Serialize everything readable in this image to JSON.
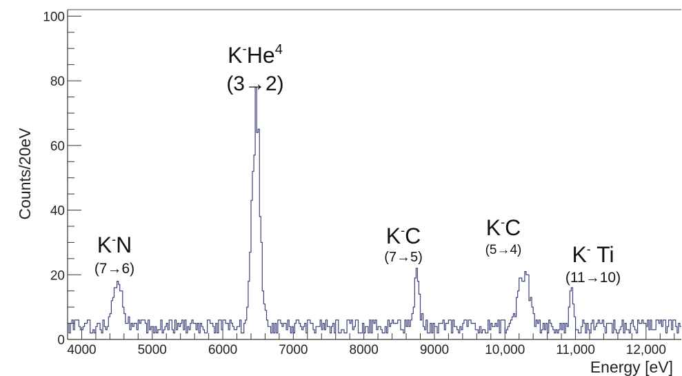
{
  "chart_data": {
    "type": "line",
    "xlabel": "Energy [eV]",
    "ylabel": "Counts/20eV",
    "xlim": [
      3800,
      12500
    ],
    "ylim": [
      0,
      102
    ],
    "x_ticks": [
      "4000",
      "5000",
      "6000",
      "7000",
      "8000",
      "9000",
      "10,000",
      "11,000",
      "12,000"
    ],
    "y_ticks": [
      "0",
      "20",
      "40",
      "60",
      "80",
      "100"
    ],
    "bin_width_eV": 20,
    "line_color": "#3a3f7a",
    "grid": false,
    "series": [
      {
        "style": "step-histogram",
        "peaks": [
          {
            "energy": 4500,
            "height": 17,
            "label": "K⁻N",
            "transition": "(7→6)"
          },
          {
            "energy": 6460,
            "height": 72,
            "label": "K⁻He⁴",
            "transition": "(3→2)"
          },
          {
            "energy": 8740,
            "height": 22,
            "label": "K⁻C",
            "transition": "(7→5)"
          },
          {
            "energy": 10260,
            "height": 23,
            "label": "K⁻C",
            "transition": "(5→4)"
          },
          {
            "energy": 10930,
            "height": 16,
            "label": "K⁻ Ti",
            "transition": "(11→10)"
          }
        ],
        "background_level": 4
      }
    ],
    "annotations": [
      {
        "main": "K",
        "sup": "-",
        "rest": "N",
        "trans": "(7→6)"
      },
      {
        "main": "K",
        "sup": "-",
        "rest": "He",
        "sup2": "4",
        "trans": "(3→2)"
      },
      {
        "main": "K",
        "sup": "-",
        "rest": "C",
        "trans": "(7→5)"
      },
      {
        "main": "K",
        "sup": "-",
        "rest": "C",
        "trans": "(5→4)"
      },
      {
        "main": "K",
        "sup": "-",
        "rest": " Ti",
        "trans": "(11→10)"
      }
    ]
  }
}
